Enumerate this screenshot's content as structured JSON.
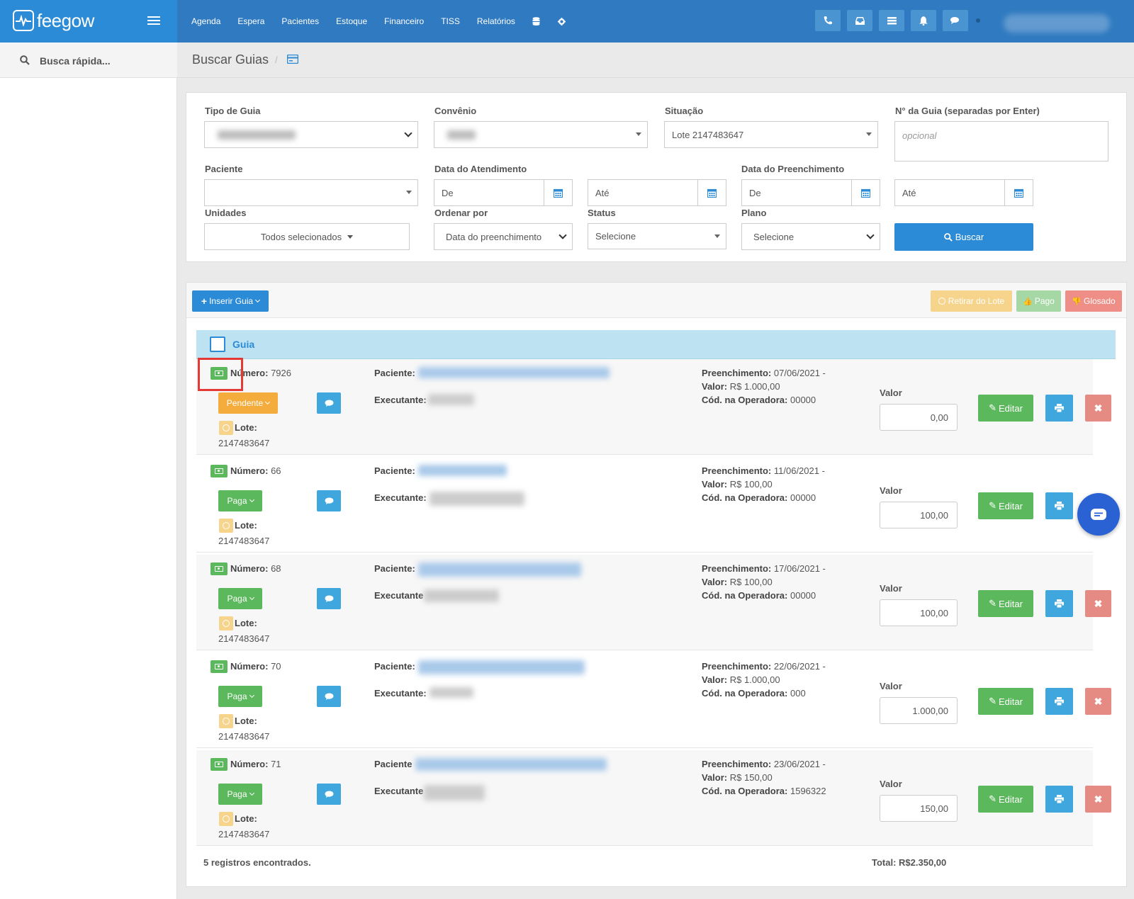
{
  "app": {
    "brand": "feegow"
  },
  "nav": {
    "items": [
      "Agenda",
      "Espera",
      "Pacientes",
      "Estoque",
      "Financeiro",
      "TISS",
      "Relatórios"
    ],
    "icons": [
      "database-icon",
      "gear-icon"
    ]
  },
  "topbar_buttons": [
    "phone-icon",
    "inbox-icon",
    "list-icon",
    "bell-icon",
    "comments-icon"
  ],
  "sidebar": {
    "search_label": "Busca rápida..."
  },
  "page": {
    "title": "Buscar Guias"
  },
  "filters": {
    "tipo_label": "Tipo de Guia",
    "convenio_label": "Convênio",
    "situacao_label": "Situação",
    "situacao_value": "Lote 2147483647",
    "num_label": "N° da Guia (separadas por Enter)",
    "num_placeholder": "opcional",
    "paciente_label": "Paciente",
    "data_atend_label": "Data do Atendimento",
    "data_preench_label": "Data do Preenchimento",
    "de": "De",
    "ate": "Até",
    "unidades_label": "Unidades",
    "unidades_value": "Todos selecionados",
    "ordenar_label": "Ordenar por",
    "ordenar_value": "Data do preenchimento",
    "status_label": "Status",
    "status_value": "Selecione",
    "plano_label": "Plano",
    "plano_value": "Selecione",
    "buscar": "Buscar"
  },
  "toolbar": {
    "inserir": "Inserir Guia",
    "retirar": "Retirar do Lote",
    "pago": "Pago",
    "glosado": "Glosado"
  },
  "table": {
    "header": "Guia"
  },
  "labels": {
    "numero": "Número:",
    "lote": "Lote:",
    "paciente": "Paciente:",
    "paciente_short": "Paciente",
    "executante": "Executante:",
    "executante_short": "Executante",
    "preenchimento": "Preenchimento:",
    "valor": "Valor:",
    "cod": "Cód. na Operadora:",
    "valor_col": "Valor",
    "editar": "Editar"
  },
  "rows": [
    {
      "numero": "7926",
      "status": "Pendente",
      "lote": "2147483647",
      "preench": "07/06/2021 -",
      "valor": "R$ 1.000,00",
      "cod": "00000",
      "valor_input": "0,00"
    },
    {
      "numero": "66",
      "status": "Paga",
      "lote": "2147483647",
      "preench": "11/06/2021 -",
      "valor": "R$ 100,00",
      "cod": "00000",
      "valor_input": "100,00"
    },
    {
      "numero": "68",
      "status": "Paga",
      "lote": "2147483647",
      "preench": "17/06/2021 -",
      "valor": "R$ 100,00",
      "cod": "00000",
      "valor_input": "100,00"
    },
    {
      "numero": "70",
      "status": "Paga",
      "lote": "2147483647",
      "preench": "22/06/2021 -",
      "valor": "R$ 1.000,00",
      "cod": "000",
      "valor_input": "1.000,00"
    },
    {
      "numero": "71",
      "status": "Paga",
      "lote": "2147483647",
      "preench": "23/06/2021 -",
      "valor": "R$ 150,00",
      "cod": "1596322",
      "valor_input": "150,00"
    }
  ],
  "footer": {
    "count": "5 registros encontrados.",
    "total": "Total: R$2.350,00"
  },
  "colors": {
    "topbar": "#2f7ac0",
    "primary": "#2b8bd6",
    "success": "#5cb85c",
    "warning": "#f4ac3c",
    "danger": "#e68a84",
    "header_row": "#bde3f3"
  }
}
